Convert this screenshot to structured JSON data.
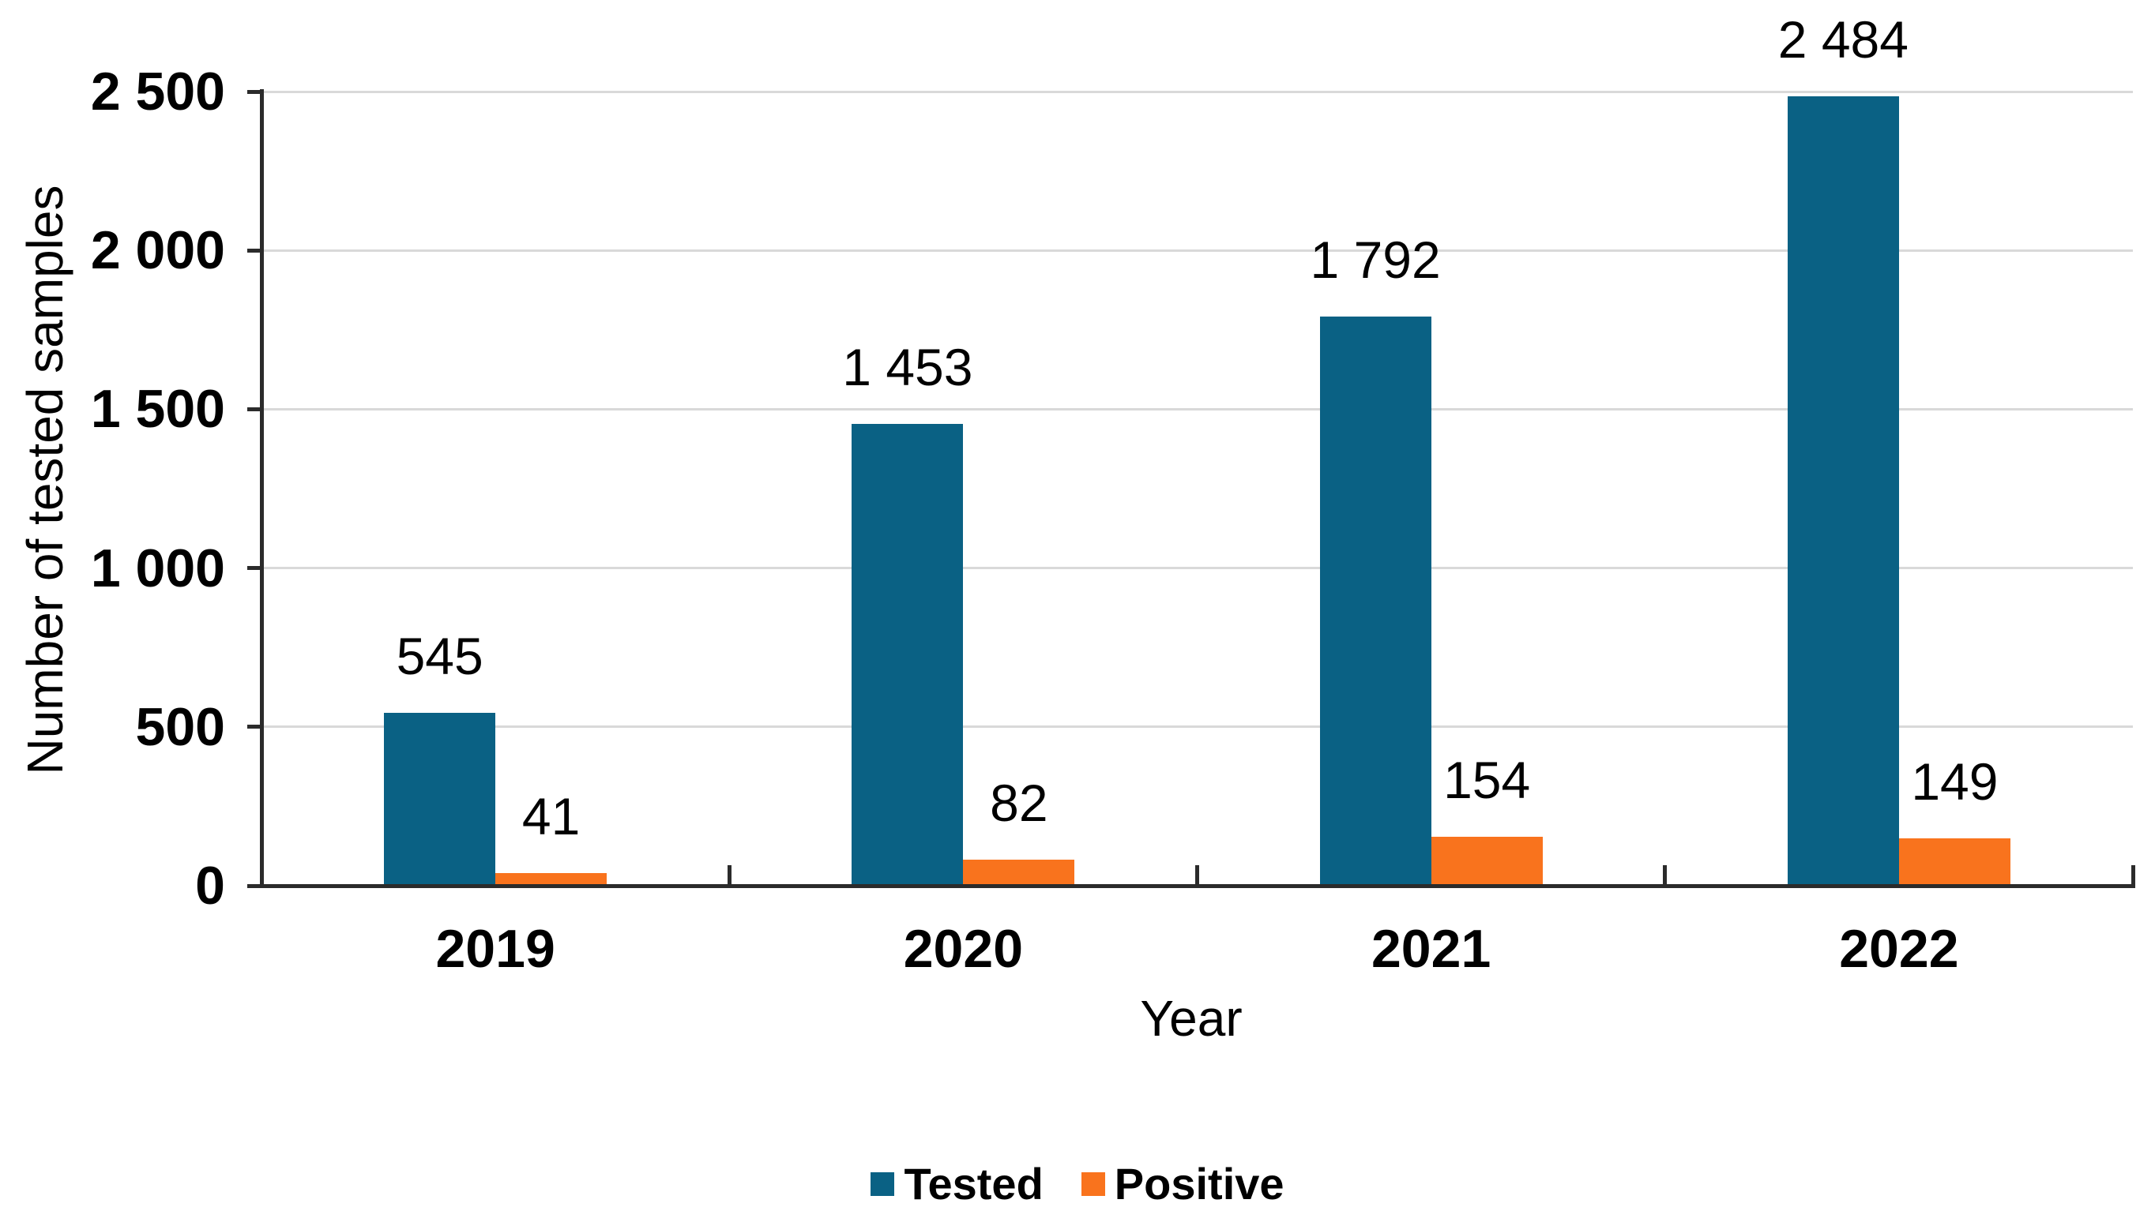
{
  "chart_data": {
    "type": "bar",
    "title": "",
    "xlabel": "Year",
    "ylabel": "Number of tested samples",
    "categories": [
      "2019",
      "2020",
      "2021",
      "2022"
    ],
    "series": [
      {
        "name": "Tested",
        "color": "#0A6184",
        "values": [
          545,
          1453,
          1792,
          2484
        ],
        "labels": [
          "545",
          "1 453",
          "1 792",
          "2 484"
        ]
      },
      {
        "name": "Positive",
        "color": "#F9731D",
        "values": [
          41,
          82,
          154,
          149
        ],
        "labels": [
          "41",
          "82",
          "154",
          "149"
        ]
      }
    ],
    "ylim": [
      0,
      2500
    ],
    "ytick_step": 500,
    "ytick_labels": [
      "0",
      "500",
      "1 000",
      "1 500",
      "2 000",
      "2 500"
    ],
    "grid": "horizontal",
    "grid_color": "#D9D9D9",
    "axis_color": "#2B2B2B",
    "legend_position": "bottom"
  }
}
